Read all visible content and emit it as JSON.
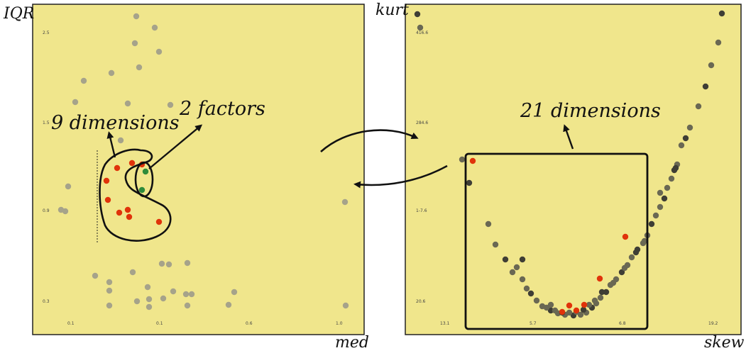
{
  "left_plot": {
    "x_label": "med",
    "y_label": "IQR",
    "y_ticks": [
      "2.5",
      "1.5",
      "0.9",
      "0.3"
    ],
    "x_ticks": [
      "0.1",
      "0.1",
      "0.6",
      "1.0"
    ],
    "annotation_dims": "9 dimensions",
    "annotation_factors": "2 factors"
  },
  "right_plot": {
    "x_label": "skew",
    "y_label": "kurt",
    "y_ticks": [
      "416.6",
      "284.6",
      "1-7.6",
      "20.6"
    ],
    "x_ticks": [
      "13.1",
      "5.7",
      "6.8",
      "19.2"
    ],
    "annotation_dims": "21 dimensions"
  },
  "colors": {
    "panel_bg": "#f0e68c",
    "gray_point": "#a6a38a",
    "dark_point": "#3f3e35",
    "red_point": "#e0330a",
    "green_point": "#2e8b3a"
  }
}
